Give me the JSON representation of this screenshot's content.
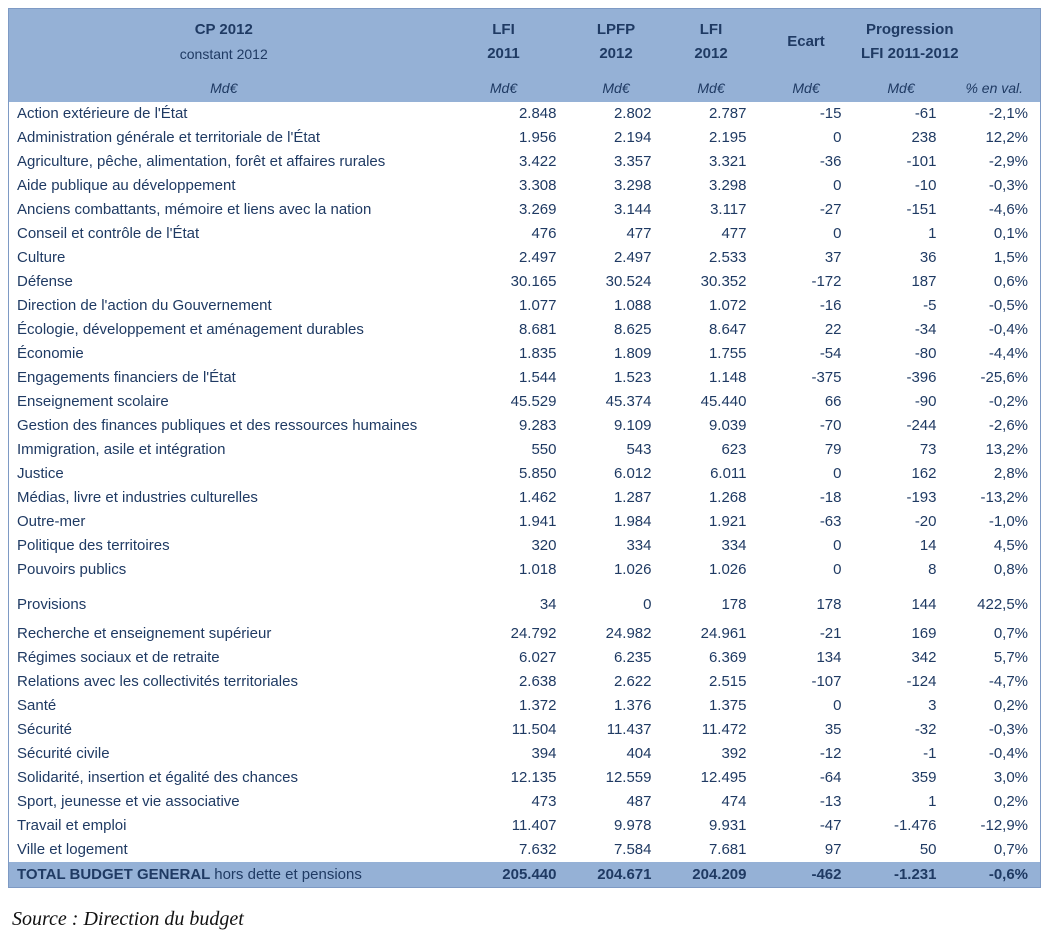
{
  "colors": {
    "header_bg": "#95B1D6",
    "text": "#1F3A63"
  },
  "table": {
    "header": {
      "title": "CP 2012",
      "subtitle": "constant 2012",
      "col_lfi2011_l1": "LFI",
      "col_lfi2011_l2": "2011",
      "col_lpfp2012_l1": "LPFP",
      "col_lpfp2012_l2": "2012",
      "col_lfi2012_l1": "LFI",
      "col_lfi2012_l2": "2012",
      "col_ecart": "Ecart",
      "col_prog_l1": "Progression",
      "col_prog_l2": "LFI 2011-2012",
      "unit_name": "Md€",
      "unit_lfi2011": "Md€",
      "unit_lpfp2012": "Md€",
      "unit_lfi2012": "Md€",
      "unit_ecart": "Md€",
      "unit_prog_md": "Md€",
      "unit_prog_pct": "% en val."
    },
    "rows": [
      {
        "name": "Action extérieure de l'État",
        "lfi2011": "2.848",
        "lpfp2012": "2.802",
        "lfi2012": "2.787",
        "ecart": "-15",
        "prog_md": "-61",
        "prog_pct": "-2,1%"
      },
      {
        "name": "Administration générale et territoriale de l'État",
        "lfi2011": "1.956",
        "lpfp2012": "2.194",
        "lfi2012": "2.195",
        "ecart": "0",
        "prog_md": "238",
        "prog_pct": "12,2%"
      },
      {
        "name": "Agriculture, pêche, alimentation, forêt et affaires rurales",
        "lfi2011": "3.422",
        "lpfp2012": "3.357",
        "lfi2012": "3.321",
        "ecart": "-36",
        "prog_md": "-101",
        "prog_pct": "-2,9%"
      },
      {
        "name": "Aide publique au développement",
        "lfi2011": "3.308",
        "lpfp2012": "3.298",
        "lfi2012": "3.298",
        "ecart": "0",
        "prog_md": "-10",
        "prog_pct": "-0,3%"
      },
      {
        "name": "Anciens combattants, mémoire et liens avec la nation",
        "lfi2011": "3.269",
        "lpfp2012": "3.144",
        "lfi2012": "3.117",
        "ecart": "-27",
        "prog_md": "-151",
        "prog_pct": "-4,6%"
      },
      {
        "name": "Conseil et contrôle de l'État",
        "lfi2011": "476",
        "lpfp2012": "477",
        "lfi2012": "477",
        "ecart": "0",
        "prog_md": "1",
        "prog_pct": "0,1%"
      },
      {
        "name": "Culture",
        "lfi2011": "2.497",
        "lpfp2012": "2.497",
        "lfi2012": "2.533",
        "ecart": "37",
        "prog_md": "36",
        "prog_pct": "1,5%"
      },
      {
        "name": "Défense",
        "lfi2011": "30.165",
        "lpfp2012": "30.524",
        "lfi2012": "30.352",
        "ecart": "-172",
        "prog_md": "187",
        "prog_pct": "0,6%"
      },
      {
        "name": "Direction de l'action du Gouvernement",
        "lfi2011": "1.077",
        "lpfp2012": "1.088",
        "lfi2012": "1.072",
        "ecart": "-16",
        "prog_md": "-5",
        "prog_pct": "-0,5%"
      },
      {
        "name": "Écologie, développement et aménagement durables",
        "lfi2011": "8.681",
        "lpfp2012": "8.625",
        "lfi2012": "8.647",
        "ecart": "22",
        "prog_md": "-34",
        "prog_pct": "-0,4%"
      },
      {
        "name": "Économie",
        "lfi2011": "1.835",
        "lpfp2012": "1.809",
        "lfi2012": "1.755",
        "ecart": "-54",
        "prog_md": "-80",
        "prog_pct": "-4,4%"
      },
      {
        "name": "Engagements financiers de l'État",
        "lfi2011": "1.544",
        "lpfp2012": "1.523",
        "lfi2012": "1.148",
        "ecart": "-375",
        "prog_md": "-396",
        "prog_pct": "-25,6%"
      },
      {
        "name": "Enseignement scolaire",
        "lfi2011": "45.529",
        "lpfp2012": "45.374",
        "lfi2012": "45.440",
        "ecart": "66",
        "prog_md": "-90",
        "prog_pct": "-0,2%"
      },
      {
        "name": "Gestion des finances publiques et des ressources humaines",
        "lfi2011": "9.283",
        "lpfp2012": "9.109",
        "lfi2012": "9.039",
        "ecart": "-70",
        "prog_md": "-244",
        "prog_pct": "-2,6%"
      },
      {
        "name": "Immigration, asile et intégration",
        "lfi2011": "550",
        "lpfp2012": "543",
        "lfi2012": "623",
        "ecart": "79",
        "prog_md": "73",
        "prog_pct": "13,2%"
      },
      {
        "name": "Justice",
        "lfi2011": "5.850",
        "lpfp2012": "6.012",
        "lfi2012": "6.011",
        "ecart": "0",
        "prog_md": "162",
        "prog_pct": "2,8%"
      },
      {
        "name": "Médias, livre et industries culturelles",
        "lfi2011": "1.462",
        "lpfp2012": "1.287",
        "lfi2012": "1.268",
        "ecart": "-18",
        "prog_md": "-193",
        "prog_pct": "-13,2%"
      },
      {
        "name": "Outre-mer",
        "lfi2011": "1.941",
        "lpfp2012": "1.984",
        "lfi2012": "1.921",
        "ecart": "-63",
        "prog_md": "-20",
        "prog_pct": "-1,0%"
      },
      {
        "name": "Politique des territoires",
        "lfi2011": "320",
        "lpfp2012": "334",
        "lfi2012": "334",
        "ecart": "0",
        "prog_md": "14",
        "prog_pct": "4,5%"
      },
      {
        "name": "Pouvoirs publics",
        "lfi2011": "1.018",
        "lpfp2012": "1.026",
        "lfi2012": "1.026",
        "ecart": "0",
        "prog_md": "8",
        "prog_pct": "0,8%"
      },
      {
        "name": "Provisions",
        "lfi2011": "34",
        "lpfp2012": "0",
        "lfi2012": "178",
        "ecart": "178",
        "prog_md": "144",
        "prog_pct": "422,5%",
        "spaced": true
      },
      {
        "name": "Recherche et enseignement supérieur",
        "lfi2011": "24.792",
        "lpfp2012": "24.982",
        "lfi2012": "24.961",
        "ecart": "-21",
        "prog_md": "169",
        "prog_pct": "0,7%"
      },
      {
        "name": "Régimes sociaux et de retraite",
        "lfi2011": "6.027",
        "lpfp2012": "6.235",
        "lfi2012": "6.369",
        "ecart": "134",
        "prog_md": "342",
        "prog_pct": "5,7%"
      },
      {
        "name": "Relations avec les collectivités territoriales",
        "lfi2011": "2.638",
        "lpfp2012": "2.622",
        "lfi2012": "2.515",
        "ecart": "-107",
        "prog_md": "-124",
        "prog_pct": "-4,7%"
      },
      {
        "name": "Santé",
        "lfi2011": "1.372",
        "lpfp2012": "1.376",
        "lfi2012": "1.375",
        "ecart": "0",
        "prog_md": "3",
        "prog_pct": "0,2%"
      },
      {
        "name": "Sécurité",
        "lfi2011": "11.504",
        "lpfp2012": "11.437",
        "lfi2012": "11.472",
        "ecart": "35",
        "prog_md": "-32",
        "prog_pct": "-0,3%"
      },
      {
        "name": "Sécurité civile",
        "lfi2011": "394",
        "lpfp2012": "404",
        "lfi2012": "392",
        "ecart": "-12",
        "prog_md": "-1",
        "prog_pct": "-0,4%"
      },
      {
        "name": "Solidarité, insertion et égalité des chances",
        "lfi2011": "12.135",
        "lpfp2012": "12.559",
        "lfi2012": "12.495",
        "ecart": "-64",
        "prog_md": "359",
        "prog_pct": "3,0%"
      },
      {
        "name": "Sport, jeunesse et vie associative",
        "lfi2011": "473",
        "lpfp2012": "487",
        "lfi2012": "474",
        "ecart": "-13",
        "prog_md": "1",
        "prog_pct": "0,2%"
      },
      {
        "name": "Travail et emploi",
        "lfi2011": "11.407",
        "lpfp2012": "9.978",
        "lfi2012": "9.931",
        "ecart": "-47",
        "prog_md": "-1.476",
        "prog_pct": "-12,9%"
      },
      {
        "name": "Ville et logement",
        "lfi2011": "7.632",
        "lpfp2012": "7.584",
        "lfi2012": "7.681",
        "ecart": "97",
        "prog_md": "50",
        "prog_pct": "0,7%"
      }
    ],
    "total": {
      "label_bold": "TOTAL BUDGET GENERAL",
      "label_rest": "hors dette et pensions",
      "lfi2011": "205.440",
      "lpfp2012": "204.671",
      "lfi2012": "204.209",
      "ecart": "-462",
      "prog_md": "-1.231",
      "prog_pct": "-0,6%"
    }
  },
  "source": "Source : Direction du budget"
}
